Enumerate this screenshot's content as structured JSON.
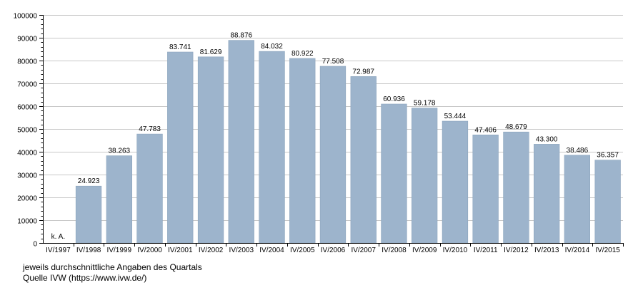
{
  "colors": {
    "bar": "#9db4cc",
    "bar_edge": "#8aa3bc",
    "grid": "#c8c8c8",
    "axis": "#000000",
    "text": "#000000",
    "background": "#ffffff"
  },
  "chart_data": {
    "type": "bar",
    "categories": [
      "IV/1997",
      "IV/1998",
      "IV/1999",
      "IV/2000",
      "IV/2001",
      "IV/2002",
      "IV/2003",
      "IV/2004",
      "IV/2005",
      "IV/2006",
      "IV/2007",
      "IV/2008",
      "IV/2009",
      "IV/2010",
      "IV/2011",
      "IV/2012",
      "IV/2013",
      "IV/2014",
      "IV/2015"
    ],
    "values": [
      null,
      24923,
      38263,
      47783,
      83741,
      81629,
      88876,
      84032,
      80922,
      77508,
      72987,
      60936,
      59178,
      53444,
      47406,
      48679,
      43300,
      38486,
      36357
    ],
    "data_labels": [
      "k. A.",
      "24.923",
      "38.263",
      "47.783",
      "83.741",
      "81.629",
      "88.876",
      "84.032",
      "80.922",
      "77.508",
      "72.987",
      "60.936",
      "59.178",
      "53.444",
      "47.406",
      "48.679",
      "43.300",
      "38.486",
      "36.357"
    ],
    "ylim": [
      0,
      100000
    ],
    "yticks": [
      "0",
      "10000",
      "20000",
      "30000",
      "40000",
      "50000",
      "60000",
      "70000",
      "80000",
      "90000",
      "100000"
    ],
    "grid": true,
    "legend": "none",
    "title": "",
    "xlabel": "",
    "ylabel": ""
  },
  "notes": {
    "line1": "jeweils durchschnittliche Angaben des Quartals",
    "line2": "Quelle IVW (https://www.ivw.de/)"
  }
}
